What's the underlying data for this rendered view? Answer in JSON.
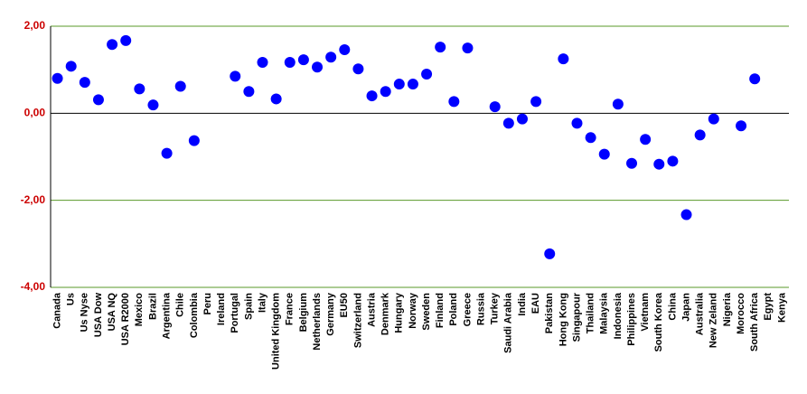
{
  "chart_data": {
    "type": "scatter",
    "categories": [
      "Canada",
      "Us",
      "Us Nyse",
      "USA Dow",
      "USA NQ",
      "USA R2000",
      "Mexico",
      "Brazil",
      "Argentina",
      "Chile",
      "Colombia",
      "Peru",
      "Ireland",
      "Portugal",
      "Spain",
      "Italy",
      "United Kingdom",
      "France",
      "Belgium",
      "Netherlands",
      "Germany",
      "EU50",
      "Switzerland",
      "Austria",
      "Denmark",
      "Hungary",
      "Norway",
      "Sweden",
      "Finland",
      "Poland",
      "Greece",
      "Russia",
      "Turkey",
      "Saudi Arabia",
      "India",
      "EAU",
      "Pakistan",
      "Hong Kong",
      "Singapour",
      "Thailand",
      "Malaysia",
      "Indonesia",
      "Philippines",
      "Vietnam",
      "South Korea",
      "China",
      "Japan",
      "Australia",
      "New Zeland",
      "Nigeria",
      "Morocco",
      "South Africa",
      "Egypt",
      "Kenya"
    ],
    "values": [
      0.8,
      1.08,
      0.71,
      0.31,
      1.58,
      1.67,
      0.56,
      0.19,
      -0.92,
      0.62,
      -0.63,
      null,
      null,
      0.85,
      0.5,
      1.17,
      0.33,
      1.17,
      1.23,
      1.06,
      1.29,
      1.46,
      1.02,
      0.4,
      0.5,
      0.67,
      0.67,
      0.9,
      1.52,
      0.27,
      1.5,
      null,
      0.15,
      -0.23,
      -0.13,
      0.27,
      -3.23,
      1.25,
      -0.23,
      -0.56,
      -0.94,
      0.21,
      -1.15,
      -0.6,
      -1.17,
      -1.1,
      -2.33,
      -0.5,
      -0.13,
      null,
      -0.29,
      0.79,
      null,
      null
    ],
    "color": "#0000ff",
    "ylim": [
      -4,
      2
    ],
    "yticks": [
      {
        "value": -4,
        "label": "-4,00"
      },
      {
        "value": -2,
        "label": "-2,00"
      },
      {
        "value": 0,
        "label": "0,00"
      },
      {
        "value": 2,
        "label": "2,00"
      }
    ],
    "grid": true
  }
}
